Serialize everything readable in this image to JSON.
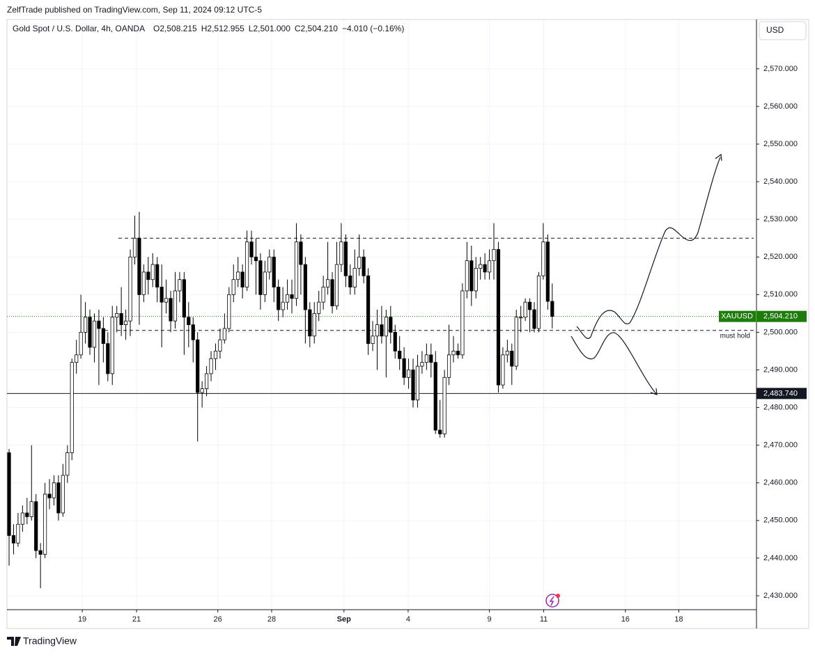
{
  "header": {
    "published": "ZelfTrade published on TradingView.com, Sep 11, 2024 09:12 UTC-5",
    "footer": "TradingView",
    "currency": "USD"
  },
  "chart_data": {
    "type": "candlestick",
    "title": "Gold Spot / U.S. Dollar, 4h, OANDA",
    "ohlc_legend": [
      {
        "key": "O",
        "value": 2508.215,
        "label": "2,508.215"
      },
      {
        "key": "H",
        "value": 2512.955,
        "label": "2,512.955"
      },
      {
        "key": "L",
        "value": 2501,
        "label": "2,501.000"
      },
      {
        "key": "C",
        "value": 2504.21,
        "label": "2,504.210"
      }
    ],
    "change": "−4.010 (−0.16%)",
    "open": [
      2468,
      2446,
      2444,
      2449,
      2452,
      2451,
      2455,
      2442,
      2441,
      2457,
      2456,
      2460,
      2452,
      2462,
      2468,
      2492,
      2494,
      2500,
      2504,
      2496,
      2503,
      2501,
      2497,
      2489,
      2504,
      2505,
      2502,
      2503,
      2520,
      2525,
      2510,
      2516,
      2514,
      2518,
      2512,
      2508,
      2509,
      2503,
      2511,
      2514,
      2504,
      2502,
      2498,
      2484,
      2485,
      2489,
      2493,
      2495,
      2498,
      2501,
      2510,
      2514,
      2516,
      2512,
      2524,
      2520,
      2519,
      2510,
      2516,
      2520,
      2512,
      2506,
      2508,
      2510,
      2509,
      2524,
      2518,
      2506,
      2499,
      2505,
      2508,
      2512,
      2514,
      2507,
      2518,
      2524,
      2515,
      2512,
      2517,
      2520,
      2515,
      2497,
      2499,
      2502,
      2499,
      2504,
      2500,
      2495,
      2493,
      2488,
      2490,
      2482,
      2491,
      2492,
      2494,
      2492,
      2474,
      2473,
      2488,
      2494,
      2495,
      2494,
      2511,
      2519,
      2511,
      2517,
      2518,
      2516,
      2519,
      2522,
      2486,
      2494,
      2495,
      2491,
      2504,
      2504,
      2508,
      2506,
      2501,
      2515,
      2524,
      2508.215
    ],
    "high": [
      2469,
      2449,
      2452,
      2454,
      2456,
      2470,
      2457,
      2444,
      2460,
      2461,
      2462,
      2462,
      2465,
      2470,
      2493,
      2498,
      2510,
      2508,
      2506,
      2505,
      2506,
      2504,
      2500,
      2507,
      2507,
      2512,
      2506,
      2522,
      2531,
      2532,
      2518,
      2520,
      2521,
      2520,
      2518,
      2514,
      2511,
      2516,
      2516,
      2516,
      2508,
      2504,
      2500,
      2487,
      2491,
      2495,
      2497,
      2501,
      2505,
      2512,
      2518,
      2520,
      2518,
      2527,
      2527,
      2525,
      2521,
      2519,
      2522,
      2522,
      2514,
      2512,
      2514,
      2514,
      2529,
      2526,
      2520,
      2508,
      2508,
      2511,
      2515,
      2524,
      2516,
      2524,
      2529,
      2526,
      2518,
      2522,
      2526,
      2522,
      2517,
      2503,
      2506,
      2507,
      2506,
      2507,
      2502,
      2499,
      2496,
      2493,
      2493,
      2494,
      2495,
      2497,
      2497,
      2495,
      2482,
      2490,
      2502,
      2499,
      2497,
      2513,
      2524,
      2523,
      2520,
      2520,
      2521,
      2522,
      2529,
      2524,
      2496,
      2498,
      2497,
      2506,
      2507,
      2509,
      2509,
      2508,
      2516,
      2529,
      2526,
      2512.955
    ],
    "low": [
      2438,
      2441,
      2443,
      2447,
      2449,
      2450,
      2440,
      2432,
      2440,
      2453,
      2454,
      2450,
      2451,
      2460,
      2466,
      2489,
      2493,
      2497,
      2494,
      2492,
      2486,
      2492,
      2487,
      2486,
      2500,
      2499,
      2498,
      2499,
      2518,
      2502,
      2508,
      2510,
      2512,
      2508,
      2496,
      2505,
      2500,
      2501,
      2508,
      2494,
      2496,
      2492,
      2471,
      2480,
      2483,
      2487,
      2490,
      2493,
      2497,
      2500,
      2508,
      2512,
      2509,
      2511,
      2518,
      2510,
      2506,
      2508,
      2514,
      2508,
      2503,
      2504,
      2506,
      2505,
      2507,
      2510,
      2497,
      2496,
      2497,
      2503,
      2506,
      2510,
      2505,
      2506,
      2516,
      2512,
      2510,
      2510,
      2515,
      2513,
      2494,
      2495,
      2490,
      2497,
      2488,
      2497,
      2493,
      2490,
      2486,
      2485,
      2480,
      2480,
      2489,
      2490,
      2488,
      2473,
      2472,
      2472,
      2486,
      2492,
      2493,
      2493,
      2509,
      2507,
      2509,
      2514,
      2514,
      2514,
      2514,
      2484,
      2485,
      2492,
      2486,
      2490,
      2500,
      2503,
      2500,
      2500,
      2500,
      2514,
      2506,
      2501
    ],
    "close": [
      2446,
      2444,
      2449,
      2452,
      2451,
      2455,
      2442,
      2441,
      2457,
      2456,
      2460,
      2452,
      2462,
      2468,
      2492,
      2494,
      2500,
      2504,
      2496,
      2503,
      2501,
      2497,
      2489,
      2504,
      2505,
      2502,
      2503,
      2520,
      2525,
      2510,
      2516,
      2514,
      2518,
      2512,
      2508,
      2509,
      2503,
      2511,
      2514,
      2504,
      2502,
      2498,
      2484,
      2485,
      2489,
      2493,
      2495,
      2498,
      2501,
      2510,
      2514,
      2516,
      2512,
      2524,
      2520,
      2519,
      2510,
      2516,
      2520,
      2512,
      2506,
      2508,
      2510,
      2509,
      2524,
      2518,
      2506,
      2499,
      2505,
      2508,
      2512,
      2514,
      2507,
      2518,
      2524,
      2515,
      2512,
      2517,
      2520,
      2515,
      2497,
      2499,
      2502,
      2499,
      2504,
      2500,
      2495,
      2493,
      2488,
      2490,
      2482,
      2491,
      2492,
      2494,
      2492,
      2474,
      2473,
      2488,
      2494,
      2495,
      2494,
      2511,
      2519,
      2511,
      2517,
      2518,
      2516,
      2519,
      2522,
      2486,
      2494,
      2495,
      2491,
      2504,
      2504,
      2508,
      2506,
      2501,
      2515,
      2524,
      2508.215,
      2504.21
    ],
    "up_color": "#ffffff",
    "down_color": "#000000",
    "wick_color": "#000000",
    "xlim": [
      -0.47,
      166.5
    ],
    "xticks": [
      {
        "value": 16.3,
        "label": "19"
      },
      {
        "value": 28.4,
        "label": "21"
      },
      {
        "value": 46.5,
        "label": "26"
      },
      {
        "value": 58.5,
        "label": "28"
      },
      {
        "value": 74.6,
        "label": "Sep"
      },
      {
        "value": 88.9,
        "label": "4"
      },
      {
        "value": 107,
        "label": "9"
      },
      {
        "value": 119.1,
        "label": "11"
      },
      {
        "value": 137.3,
        "label": "16"
      },
      {
        "value": 149.2,
        "label": "18"
      }
    ],
    "ylim": [
      2426.3,
      2583.1
    ],
    "yticks": [
      {
        "value": 2430,
        "label": "2,430.000"
      },
      {
        "value": 2440,
        "label": "2,440.000"
      },
      {
        "value": 2450,
        "label": "2,450.000"
      },
      {
        "value": 2460,
        "label": "2,460.000"
      },
      {
        "value": 2470,
        "label": "2,470.000"
      },
      {
        "value": 2480,
        "label": "2,480.000"
      },
      {
        "value": 2490,
        "label": "2,490.000"
      },
      {
        "value": 2500,
        "label": "2,500.000"
      },
      {
        "value": 2510,
        "label": "2,510.000"
      },
      {
        "value": 2520,
        "label": "2,520.000"
      },
      {
        "value": 2530,
        "label": "2,530.000"
      },
      {
        "value": 2540,
        "label": "2,540.000"
      },
      {
        "value": 2550,
        "label": "2,550.000"
      },
      {
        "value": 2560,
        "label": "2,560.000"
      },
      {
        "value": 2570,
        "label": "2,570.000"
      }
    ],
    "grid": true,
    "levels": [
      {
        "value": 2525,
        "style": "dashed"
      },
      {
        "value": 2500.5,
        "style": "dashed",
        "label": "must hold"
      },
      {
        "value": 2483.74,
        "style": "solid",
        "price_label": "2,483.740"
      }
    ],
    "last_price": {
      "value": 2504.21,
      "label": "2,504.210",
      "symbol": "XAUUSD",
      "color": "#1e7c0c"
    }
  }
}
